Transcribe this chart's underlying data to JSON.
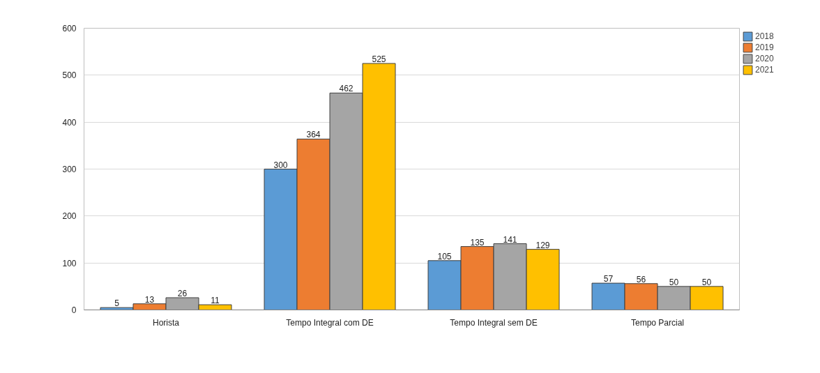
{
  "chart_data": {
    "type": "bar",
    "categories": [
      "Horista",
      "Tempo Integral com DE",
      "Tempo Integral sem DE",
      "Tempo Parcial"
    ],
    "series": [
      {
        "name": "2018",
        "color": "#5b9bd5",
        "values": [
          5,
          300,
          105,
          57
        ]
      },
      {
        "name": "2019",
        "color": "#ed7d31",
        "values": [
          13,
          364,
          135,
          56
        ]
      },
      {
        "name": "2020",
        "color": "#a5a5a5",
        "values": [
          26,
          462,
          141,
          50
        ]
      },
      {
        "name": "2021",
        "color": "#ffc000",
        "values": [
          11,
          525,
          129,
          50
        ]
      }
    ],
    "ylim": [
      0,
      600
    ],
    "yticks": [
      0,
      100,
      200,
      300,
      400,
      500,
      600
    ],
    "grid": "y",
    "legend": "top right",
    "data_labels": true
  }
}
